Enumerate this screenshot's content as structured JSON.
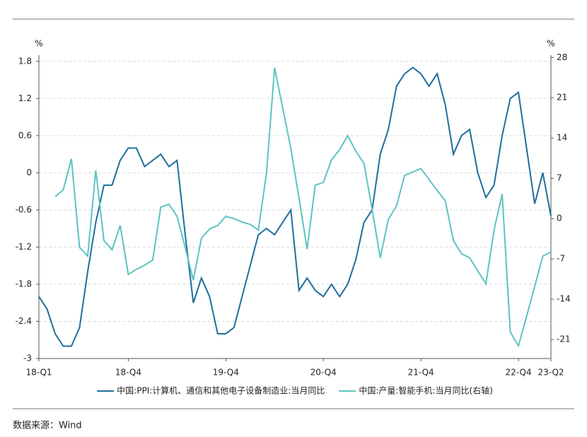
{
  "chart_data": {
    "type": "line",
    "y_unit": "%",
    "y2_unit": "%",
    "categories": [
      "18-Q1",
      null,
      null,
      null,
      null,
      null,
      null,
      null,
      null,
      null,
      null,
      "18-Q4",
      null,
      null,
      null,
      null,
      null,
      null,
      null,
      null,
      null,
      null,
      null,
      "19-Q4",
      null,
      null,
      null,
      null,
      null,
      null,
      null,
      null,
      null,
      null,
      null,
      "20-Q4",
      null,
      null,
      null,
      null,
      null,
      null,
      null,
      null,
      null,
      null,
      null,
      "21-Q4",
      null,
      null,
      null,
      null,
      null,
      null,
      null,
      null,
      null,
      null,
      null,
      "22-Q4",
      null,
      null,
      null,
      "23-Q2"
    ],
    "series": [
      {
        "name": "中国:PPI:计算机、通信和其他电子设备制造业:当月同比",
        "color": "#1f6e9c",
        "axis": "y",
        "values": [
          -2.0,
          -2.2,
          -2.6,
          -2.8,
          -2.8,
          -2.5,
          -1.6,
          -0.8,
          -0.2,
          -0.2,
          0.2,
          0.4,
          0.4,
          0.1,
          0.2,
          0.3,
          0.1,
          0.2,
          -1.0,
          -2.1,
          -1.7,
          -2.0,
          -2.6,
          -2.6,
          -2.5,
          -2.0,
          -1.5,
          -1.0,
          -0.9,
          -1.0,
          -0.8,
          -0.6,
          -1.9,
          -1.7,
          -1.9,
          -2.0,
          -1.8,
          -2.0,
          -1.8,
          -1.4,
          -0.8,
          -0.6,
          0.3,
          0.7,
          1.4,
          1.6,
          1.7,
          1.6,
          1.4,
          1.6,
          1.1,
          0.3,
          0.6,
          0.7,
          0,
          -0.4,
          -0.2,
          0.6,
          1.2,
          1.3,
          0.4,
          -0.5,
          0,
          -0.7
        ]
      },
      {
        "name": "中国:产量:智能手机:当月同比(右轴)",
        "color": "#5cc4c0",
        "axis": "y2",
        "values": [
          null,
          null,
          3.8,
          5.0,
          10.4,
          -5.0,
          -6.5,
          8.4,
          -3.8,
          -5.4,
          -1.2,
          -9.7,
          -8.8,
          -8.1,
          -7.2,
          2.0,
          2.5,
          0.4,
          -5.0,
          -10.7,
          -3.4,
          -1.8,
          -1.2,
          0.4,
          0,
          -0.6,
          -1.0,
          -2.0,
          7.9,
          26.2,
          19.2,
          12.2,
          3.6,
          -5.3,
          5.8,
          6.3,
          10.2,
          12.0,
          14.4,
          11.7,
          9.6,
          1.6,
          -6.8,
          -0.1,
          2.2,
          7.5,
          8.1,
          8.7,
          6.8,
          4.9,
          3.1,
          -3.8,
          -6.1,
          -6.8,
          -9.1,
          -11.3,
          -2.0,
          4.3,
          -19.7,
          -22.1,
          -17.0,
          -11.8,
          -6.5,
          -5.8
        ]
      }
    ],
    "ylim": [
      -3,
      1.9
    ],
    "yticks": [
      -3,
      -2.4,
      -1.8,
      -1.2,
      -0.6,
      0,
      0.6,
      1.2,
      1.8
    ],
    "y2lim": [
      -24.3,
      28.4
    ],
    "y2ticks": [
      -21,
      -14,
      -7,
      0,
      7,
      14,
      21,
      28
    ],
    "grid": true,
    "legend": "bottom",
    "source": "数据来源：Wind"
  }
}
